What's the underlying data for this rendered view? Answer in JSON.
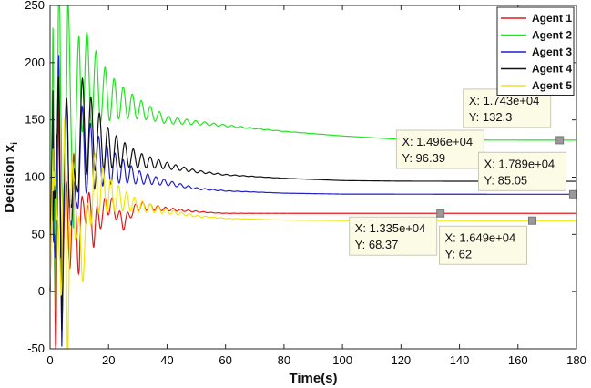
{
  "chart_data": {
    "type": "line",
    "title": "",
    "xlabel": "Time(s)",
    "ylabel": "Decision x",
    "ylabel_subscript": "i",
    "xlim": [
      0,
      180
    ],
    "ylim": [
      -50,
      250
    ],
    "xticks": [
      0,
      20,
      40,
      60,
      80,
      100,
      120,
      140,
      160,
      180
    ],
    "yticks": [
      -50,
      0,
      50,
      100,
      150,
      200,
      250
    ],
    "grid": false,
    "legend_position": "top-right",
    "series": [
      {
        "name": "Agent 1",
        "color": "#e31a1c",
        "x": [
          0,
          1,
          2,
          3,
          4,
          5,
          6,
          8,
          10,
          12,
          15,
          20,
          25,
          30,
          40,
          50,
          55,
          60,
          100,
          133.5,
          180
        ],
        "y": [
          0,
          135,
          10,
          120,
          20,
          100,
          30,
          90,
          40,
          85,
          55,
          78,
          60,
          75,
          72,
          70,
          69,
          68.4,
          68.37,
          68.37,
          68.37
        ]
      },
      {
        "name": "Agent 2",
        "color": "#1ee61e",
        "x": [
          0,
          1,
          2,
          3,
          4,
          6,
          8,
          10,
          15,
          20,
          30,
          40,
          60,
          80,
          100,
          120,
          150,
          174.3,
          180
        ],
        "y": [
          0,
          240,
          70,
          225,
          80,
          200,
          100,
          190,
          180,
          170,
          160,
          150,
          145,
          140,
          136,
          133,
          132.4,
          132.3,
          132.3
        ]
      },
      {
        "name": "Agent 3",
        "color": "#1f1fcc",
        "x": [
          0,
          1,
          2,
          3,
          4,
          6,
          8,
          10,
          15,
          20,
          30,
          40,
          50,
          60,
          80,
          100,
          150,
          178.9,
          180
        ],
        "y": [
          0,
          160,
          20,
          150,
          30,
          135,
          40,
          125,
          115,
          110,
          100,
          95,
          90,
          88,
          86,
          85.2,
          85.05,
          85.05,
          85.05
        ]
      },
      {
        "name": "Agent 4",
        "color": "#111111",
        "x": [
          0,
          1,
          2,
          3,
          4,
          6,
          8,
          10,
          15,
          20,
          30,
          40,
          50,
          60,
          80,
          100,
          120,
          149.6,
          180
        ],
        "y": [
          0,
          183,
          30,
          165,
          40,
          150,
          50,
          145,
          135,
          125,
          115,
          110,
          105,
          102,
          99,
          97,
          96.5,
          96.39,
          96.39
        ]
      },
      {
        "name": "Agent 5",
        "color": "#f2e600",
        "x": [
          0,
          1,
          2,
          3,
          4,
          5,
          6,
          8,
          10,
          15,
          20,
          30,
          40,
          50,
          60,
          80,
          100,
          164.9,
          180
        ],
        "y": [
          0,
          130,
          -10,
          125,
          -15,
          115,
          0,
          105,
          20,
          95,
          85,
          75,
          70,
          66,
          64,
          62.5,
          62.1,
          62,
          62
        ]
      }
    ],
    "datatips": [
      {
        "x_label": "X: 1.335e+04",
        "y_label": "Y: 68.37",
        "x": 133.5,
        "y": 68.37
      },
      {
        "x_label": "X: 1.649e+04",
        "y_label": "Y: 62",
        "x": 164.9,
        "y": 62
      },
      {
        "x_label": "X: 1.496e+04",
        "y_label": "Y: 96.39",
        "x": 149.6,
        "y": 96.39
      },
      {
        "x_label": "X: 1.743e+04",
        "y_label": "Y: 132.3",
        "x": 174.3,
        "y": 132.3
      },
      {
        "x_label": "X: 1.789e+04",
        "y_label": "Y: 85.05",
        "x": 178.9,
        "y": 85.05
      }
    ]
  }
}
